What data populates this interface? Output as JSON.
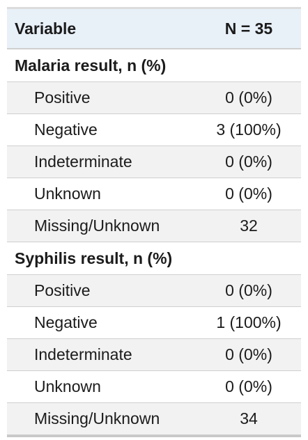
{
  "header": {
    "variable": "Variable",
    "n": "N = 35"
  },
  "groups": [
    {
      "title": "Malaria result, n (%)",
      "rows": [
        {
          "label": "Positive",
          "value": "0 (0%)"
        },
        {
          "label": "Negative",
          "value": "3 (100%)"
        },
        {
          "label": "Indeterminate",
          "value": "0 (0%)"
        },
        {
          "label": "Unknown",
          "value": "0 (0%)"
        },
        {
          "label": "Missing/Unknown",
          "value": "32"
        }
      ]
    },
    {
      "title": "Syphilis result, n (%)",
      "rows": [
        {
          "label": "Positive",
          "value": "0 (0%)"
        },
        {
          "label": "Negative",
          "value": "1 (100%)"
        },
        {
          "label": "Indeterminate",
          "value": "0 (0%)"
        },
        {
          "label": "Unknown",
          "value": "0 (0%)"
        },
        {
          "label": "Missing/Unknown",
          "value": "34"
        }
      ]
    }
  ]
}
